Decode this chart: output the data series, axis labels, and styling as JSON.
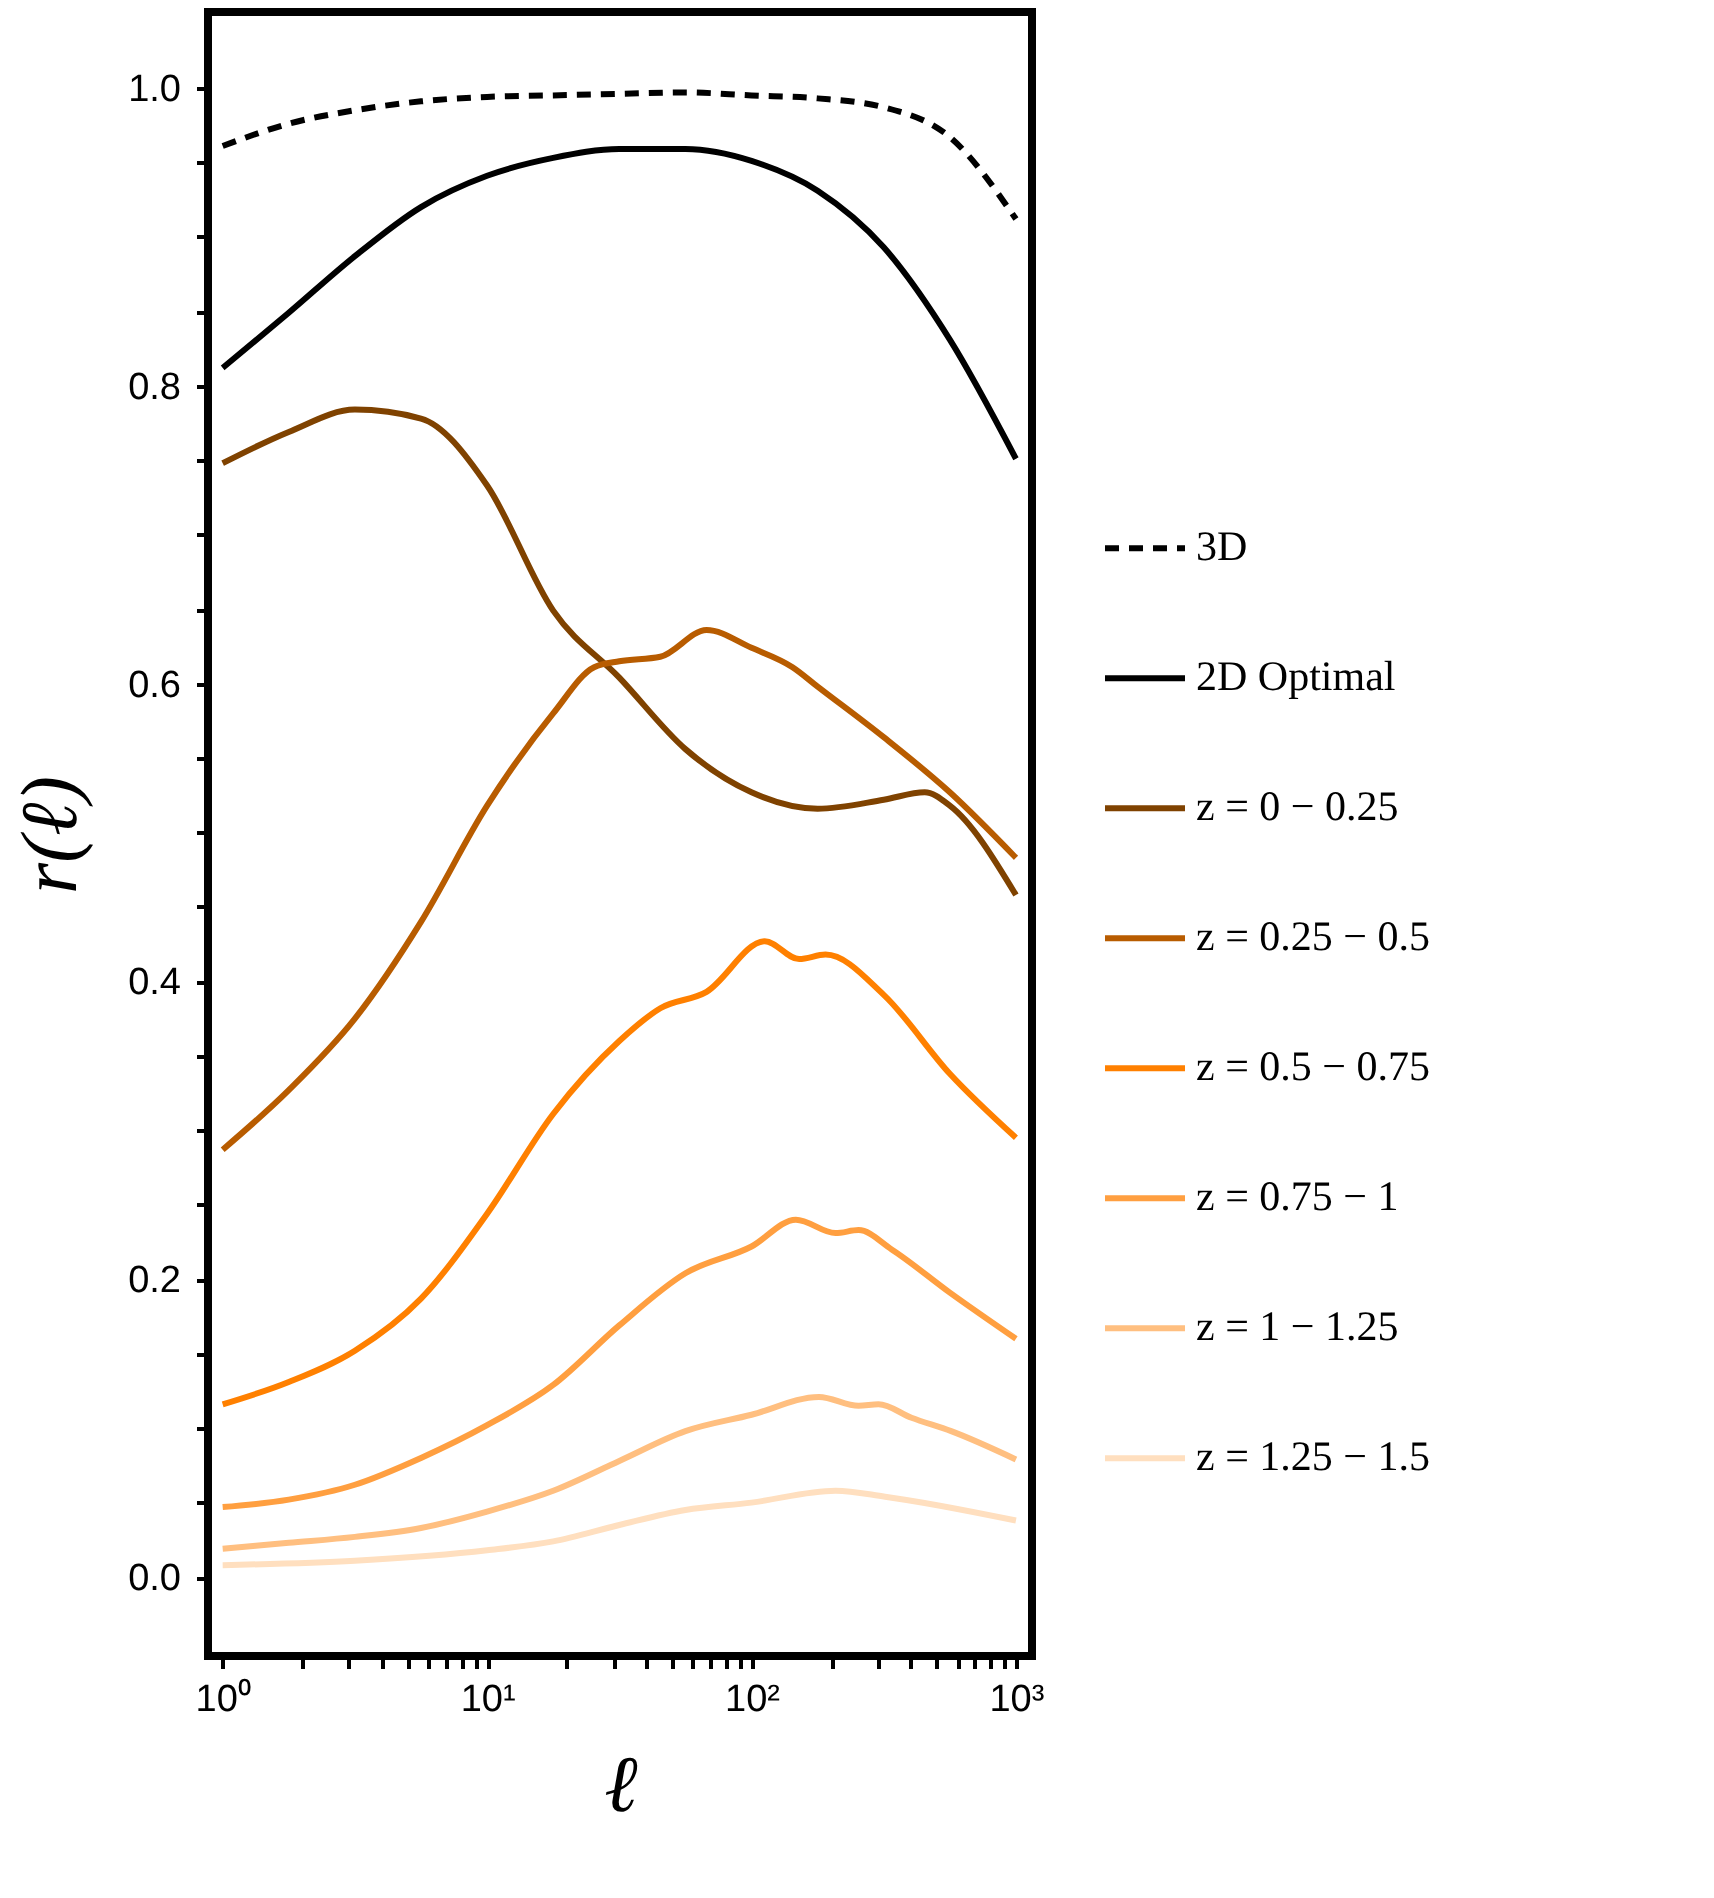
{
  "chart_data": {
    "type": "line",
    "xlabel": "ℓ",
    "ylabel": "r(ℓ)",
    "log": "x",
    "legend": "right",
    "grid": false,
    "xlim": [
      0.88,
      1150
    ],
    "ylim": [
      -0.053,
      1.051
    ],
    "xticks": [
      {
        "value": 1,
        "label": "10⁰"
      },
      {
        "value": 2,
        "label": null
      },
      {
        "value": 3,
        "label": null
      },
      {
        "value": 4,
        "label": null
      },
      {
        "value": 5,
        "label": null
      },
      {
        "value": 6,
        "label": null
      },
      {
        "value": 7,
        "label": null
      },
      {
        "value": 8,
        "label": null
      },
      {
        "value": 9,
        "label": null
      },
      {
        "value": 10,
        "label": "10¹"
      },
      {
        "value": 20,
        "label": null
      },
      {
        "value": 30,
        "label": null
      },
      {
        "value": 40,
        "label": null
      },
      {
        "value": 50,
        "label": null
      },
      {
        "value": 60,
        "label": null
      },
      {
        "value": 70,
        "label": null
      },
      {
        "value": 80,
        "label": null
      },
      {
        "value": 90,
        "label": null
      },
      {
        "value": 100,
        "label": "10²"
      },
      {
        "value": 200,
        "label": null
      },
      {
        "value": 300,
        "label": null
      },
      {
        "value": 400,
        "label": null
      },
      {
        "value": 500,
        "label": null
      },
      {
        "value": 600,
        "label": null
      },
      {
        "value": 700,
        "label": null
      },
      {
        "value": 800,
        "label": null
      },
      {
        "value": 900,
        "label": null
      },
      {
        "value": 1000,
        "label": "10³"
      }
    ],
    "yticks": [
      {
        "value": 0,
        "label": "0.0"
      },
      {
        "value": 0.05,
        "label": null
      },
      {
        "value": 0.1,
        "label": null
      },
      {
        "value": 0.15,
        "label": null
      },
      {
        "value": 0.2,
        "label": "0.2"
      },
      {
        "value": 0.25,
        "label": null
      },
      {
        "value": 0.3,
        "label": null
      },
      {
        "value": 0.35,
        "label": null
      },
      {
        "value": 0.4,
        "label": "0.4"
      },
      {
        "value": 0.45,
        "label": null
      },
      {
        "value": 0.5,
        "label": null
      },
      {
        "value": 0.55,
        "label": null
      },
      {
        "value": 0.6,
        "label": "0.6"
      },
      {
        "value": 0.65,
        "label": null
      },
      {
        "value": 0.7,
        "label": null
      },
      {
        "value": 0.75,
        "label": null
      },
      {
        "value": 0.8,
        "label": "0.8"
      },
      {
        "value": 0.85,
        "label": null
      },
      {
        "value": 0.9,
        "label": null
      },
      {
        "value": 0.95,
        "label": null
      },
      {
        "value": 1.0,
        "label": "1.0"
      }
    ],
    "series": [
      {
        "name": "3D",
        "color": "#000000",
        "line_style": "dashed",
        "x": [
          1,
          1.778,
          3.162,
          5.623,
          10,
          17.78,
          31.62,
          56.23,
          100,
          177.8,
          316.2,
          562.3,
          1000
        ],
        "values": [
          0.961,
          0.976,
          0.985,
          0.991,
          0.994,
          0.995,
          0.996,
          0.997,
          0.995,
          0.993,
          0.987,
          0.967,
          0.912
        ]
      },
      {
        "name": "2D Optimal",
        "color": "#000000",
        "line_style": "solid",
        "x": [
          1,
          1.778,
          3.162,
          5.623,
          10,
          17.78,
          31.62,
          56.23,
          100,
          177.8,
          316.2,
          562.3,
          1000
        ],
        "values": [
          0.812,
          0.849,
          0.887,
          0.92,
          0.941,
          0.953,
          0.959,
          0.959,
          0.951,
          0.931,
          0.893,
          0.831,
          0.751
        ]
      },
      {
        "name": "z = 0 − 0.25",
        "color": "#7f4200",
        "line_style": "solid",
        "x": [
          1,
          1.778,
          3.162,
          5.623,
          10,
          17.78,
          31.62,
          56.23,
          100,
          177.8,
          316.2,
          451.9,
          562.3,
          1000
        ],
        "values": [
          0.748,
          0.769,
          0.784,
          0.778,
          0.733,
          0.649,
          0.604,
          0.556,
          0.527,
          0.516,
          0.522,
          0.527,
          0.518,
          0.458
        ]
      },
      {
        "name": "z = 0.25 − 0.5",
        "color": "#b85c00",
        "line_style": "solid",
        "x": [
          1,
          1.778,
          3.162,
          5.623,
          10,
          17.78,
          25.4,
          31.62,
          45.2,
          67.6,
          100,
          142.9,
          177.8,
          316.2,
          562.3,
          1000
        ],
        "values": [
          0.287,
          0.327,
          0.375,
          0.44,
          0.518,
          0.58,
          0.611,
          0.615,
          0.618,
          0.636,
          0.624,
          0.611,
          0.598,
          0.564,
          0.527,
          0.483
        ]
      },
      {
        "name": "z = 0.5 − 0.75",
        "color": "#ff8000",
        "line_style": "solid",
        "x": [
          1,
          1.778,
          3.162,
          5.623,
          10,
          17.78,
          31.62,
          45.2,
          67.6,
          112.2,
          151.4,
          190.5,
          316.2,
          562.3,
          1000
        ],
        "values": [
          0.116,
          0.131,
          0.152,
          0.187,
          0.244,
          0.311,
          0.36,
          0.382,
          0.393,
          0.427,
          0.415,
          0.418,
          0.391,
          0.338,
          0.295
        ]
      },
      {
        "name": "z = 0.75 − 1",
        "color": "#ff9f40",
        "line_style": "solid",
        "x": [
          1,
          1.778,
          3.162,
          5.623,
          10,
          17.78,
          31.62,
          56.23,
          100,
          147.1,
          207.8,
          254.1,
          338.8,
          562.3,
          1000
        ],
        "values": [
          0.047,
          0.052,
          0.062,
          0.08,
          0.102,
          0.129,
          0.169,
          0.204,
          0.222,
          0.24,
          0.231,
          0.233,
          0.22,
          0.191,
          0.16
        ]
      },
      {
        "name": "z = 1 − 1.25",
        "color": "#ffbf80",
        "line_style": "solid",
        "x": [
          1,
          1.778,
          3.162,
          5.623,
          10,
          17.78,
          31.62,
          56.23,
          100,
          179.9,
          254.1,
          302,
          402.7,
          568.9,
          1000
        ],
        "values": [
          0.019,
          0.023,
          0.027,
          0.033,
          0.044,
          0.058,
          0.078,
          0.098,
          0.109,
          0.121,
          0.115,
          0.116,
          0.107,
          0.098,
          0.079
        ]
      },
      {
        "name": "z = 1.25 − 1.5",
        "color": "#ffdfbf",
        "line_style": "solid",
        "x": [
          1,
          3.162,
          10,
          17.78,
          31.62,
          56.23,
          100,
          207.8,
          319.9,
          1000
        ],
        "values": [
          0.008,
          0.011,
          0.018,
          0.024,
          0.035,
          0.045,
          0.05,
          0.058,
          0.054,
          0.038
        ]
      }
    ]
  }
}
